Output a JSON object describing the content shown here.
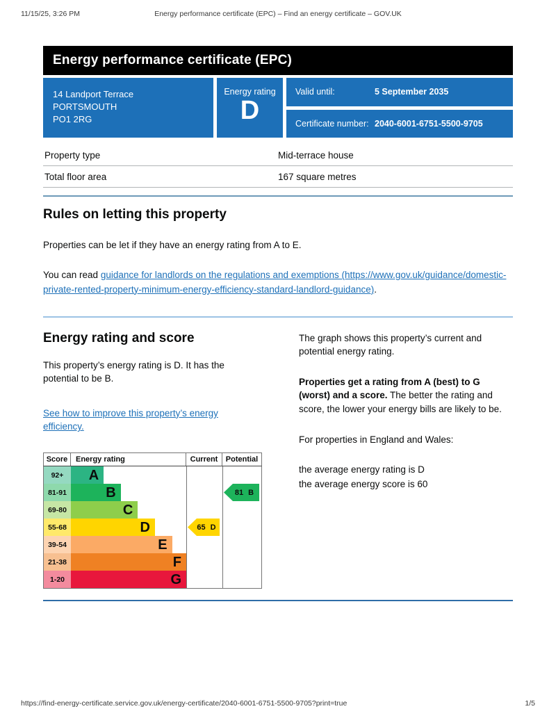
{
  "print_header": {
    "datetime": "11/15/25, 3:26 PM",
    "title": "Energy performance certificate (EPC) – Find an energy certificate – GOV.UK"
  },
  "print_footer": {
    "url": "https://find-energy-certificate.service.gov.uk/energy-certificate/2040-6001-6751-5500-9705?print=true",
    "page": "1/5"
  },
  "banner": {
    "title": "Energy performance certificate (EPC)"
  },
  "summary": {
    "accent_color": "#1d70b8",
    "address_lines": [
      "14 Landport Terrace",
      "PORTSMOUTH",
      "PO1 2RG"
    ],
    "energy_rating_label": "Energy rating",
    "energy_rating": "D",
    "valid_until_label": "Valid until:",
    "valid_until": "5 September 2035",
    "certificate_number_label": "Certificate number:",
    "certificate_number": "2040-6001-6751-5500-9705"
  },
  "property_table": {
    "rows": [
      {
        "label": "Property type",
        "value": "Mid-terrace house"
      },
      {
        "label": "Total floor area",
        "value": "167 square metres"
      }
    ]
  },
  "rules_section": {
    "heading": "Rules on letting this property",
    "paragraph": "Properties can be let if they have an energy rating from A to E.",
    "read_prefix": "You can read ",
    "link_text": "guidance for landlords on the regulations and exemptions (https://www.gov.uk/guidance/domestic-private-rented-property-minimum-energy-efficiency-standard-landlord-guidance)",
    "read_suffix": "."
  },
  "rating_section": {
    "heading": "Energy rating and score",
    "paragraph": "This property’s energy rating is D. It has the potential to be B.",
    "improve_link": "See how to improve this property’s energy efficiency.",
    "right": {
      "p1": "The graph shows this property’s current and potential energy rating.",
      "p2_bold": "Properties get a rating from A (best) to G (worst) and a score.",
      "p2_rest": " The better the rating and score, the lower your energy bills are likely to be.",
      "p3": "For properties in England and Wales:",
      "avg_rating": "the average energy rating is D",
      "avg_score": "the average energy score is 60"
    }
  },
  "chart_data": {
    "type": "bar",
    "title": "Energy rating and score graph",
    "headers": {
      "score": "Score",
      "rating": "Energy rating",
      "current": "Current",
      "potential": "Potential"
    },
    "bands": [
      {
        "letter": "A",
        "score_range": "92+",
        "color": "#2cb483",
        "score_color": "#95d9c1",
        "width_pct": 23
      },
      {
        "letter": "B",
        "score_range": "81-91",
        "color": "#1db35b",
        "score_color": "#8ed9ac",
        "width_pct": 35
      },
      {
        "letter": "C",
        "score_range": "69-80",
        "color": "#8ece4b",
        "score_color": "#c6e6a5",
        "width_pct": 47
      },
      {
        "letter": "D",
        "score_range": "55-68",
        "color": "#ffd500",
        "score_color": "#ffe96a",
        "width_pct": 59
      },
      {
        "letter": "E",
        "score_range": "39-54",
        "color": "#fbaa65",
        "score_color": "#fdd4b2",
        "width_pct": 71
      },
      {
        "letter": "F",
        "score_range": "21-38",
        "color": "#ef8123",
        "score_color": "#f7c091",
        "width_pct": 83
      },
      {
        "letter": "G",
        "score_range": "1-20",
        "color": "#e8173c",
        "score_color": "#f38b9e",
        "width_pct": 95
      }
    ],
    "current": {
      "score": "65",
      "band": "D",
      "color": "#ffd500",
      "row": 3
    },
    "potential": {
      "score": "81",
      "band": "B",
      "color": "#1db35b",
      "row": 1
    }
  }
}
